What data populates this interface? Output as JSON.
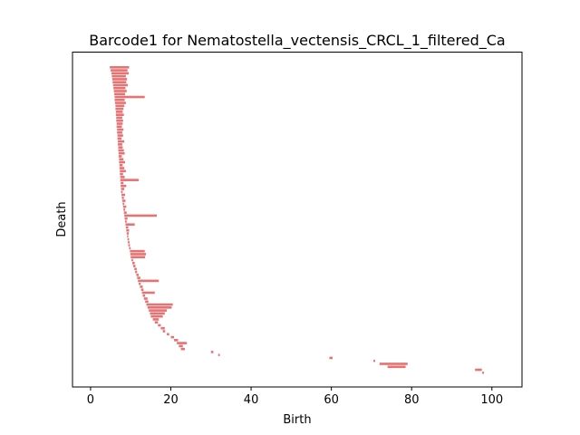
{
  "chart_data": {
    "type": "barcode",
    "title": "Barcode1 for Nematostella_vectensis_CRCL_1_filtered_Ca",
    "xlabel": "Birth",
    "ylabel": "Death",
    "xlim": [
      -4.5,
      107.5
    ],
    "x_ticks": [
      0,
      20,
      40,
      60,
      80,
      100
    ],
    "y_ticks_shown": false,
    "bar_color": "#e57373",
    "bars": [
      [
        4.8,
        9.6
      ],
      [
        5.0,
        9.2
      ],
      [
        5.2,
        9.5
      ],
      [
        5.3,
        8.8
      ],
      [
        5.4,
        9.1
      ],
      [
        5.5,
        8.9
      ],
      [
        5.6,
        9.3
      ],
      [
        5.7,
        8.7
      ],
      [
        5.8,
        9.0
      ],
      [
        5.9,
        8.6
      ],
      [
        6.0,
        13.5
      ],
      [
        6.0,
        8.5
      ],
      [
        6.1,
        8.8
      ],
      [
        6.2,
        8.4
      ],
      [
        6.2,
        8.2
      ],
      [
        6.3,
        8.0
      ],
      [
        6.3,
        8.3
      ],
      [
        6.4,
        7.9
      ],
      [
        6.4,
        8.1
      ],
      [
        6.5,
        8.0
      ],
      [
        6.5,
        7.8
      ],
      [
        6.6,
        8.2
      ],
      [
        6.6,
        7.9
      ],
      [
        6.7,
        8.1
      ],
      [
        6.7,
        7.7
      ],
      [
        6.8,
        8.4
      ],
      [
        6.8,
        7.9
      ],
      [
        6.9,
        8.0
      ],
      [
        6.9,
        8.3
      ],
      [
        7.0,
        8.5
      ],
      [
        7.0,
        7.8
      ],
      [
        7.1,
        8.2
      ],
      [
        7.1,
        8.6
      ],
      [
        7.2,
        8.0
      ],
      [
        7.2,
        8.4
      ],
      [
        7.3,
        8.8
      ],
      [
        7.3,
        8.1
      ],
      [
        7.4,
        8.5
      ],
      [
        7.4,
        12.0
      ],
      [
        7.5,
        8.2
      ],
      [
        7.5,
        8.9
      ],
      [
        7.6,
        8.4
      ],
      [
        7.6,
        8.0
      ],
      [
        7.7,
        8.6
      ],
      [
        7.8,
        8.3
      ],
      [
        7.9,
        8.7
      ],
      [
        8.0,
        8.4
      ],
      [
        8.1,
        8.9
      ],
      [
        8.2,
        8.6
      ],
      [
        8.3,
        9.0
      ],
      [
        8.4,
        16.5
      ],
      [
        8.5,
        9.2
      ],
      [
        8.6,
        9.0
      ],
      [
        8.7,
        11.0
      ],
      [
        8.8,
        9.4
      ],
      [
        8.9,
        9.6
      ],
      [
        9.0,
        9.5
      ],
      [
        9.1,
        9.4
      ],
      [
        9.2,
        9.6
      ],
      [
        9.3,
        9.7
      ],
      [
        9.4,
        9.8
      ],
      [
        9.6,
        10.0
      ],
      [
        9.8,
        13.5
      ],
      [
        9.9,
        13.8
      ],
      [
        10.0,
        13.6
      ],
      [
        10.2,
        10.6
      ],
      [
        10.4,
        11.0
      ],
      [
        10.6,
        11.2
      ],
      [
        10.9,
        11.5
      ],
      [
        11.1,
        11.6
      ],
      [
        11.4,
        12.0
      ],
      [
        11.6,
        12.4
      ],
      [
        11.8,
        17.0
      ],
      [
        12.0,
        12.5
      ],
      [
        12.3,
        13.0
      ],
      [
        12.6,
        13.2
      ],
      [
        12.8,
        16.0
      ],
      [
        13.0,
        13.6
      ],
      [
        13.3,
        14.2
      ],
      [
        13.6,
        14.4
      ],
      [
        13.9,
        20.5
      ],
      [
        14.2,
        20.2
      ],
      [
        14.5,
        19.0
      ],
      [
        14.8,
        18.5
      ],
      [
        15.0,
        18.0
      ],
      [
        15.5,
        17.0
      ],
      [
        16.0,
        16.8
      ],
      [
        16.8,
        17.5
      ],
      [
        17.5,
        18.5
      ],
      [
        18.0,
        18.6
      ],
      [
        19.0,
        19.6
      ],
      [
        20.0,
        20.8
      ],
      [
        20.8,
        21.8
      ],
      [
        21.5,
        24.0
      ],
      [
        22.0,
        23.0
      ],
      [
        22.5,
        23.5
      ],
      [
        30.0,
        30.6
      ],
      [
        31.8,
        32.2
      ],
      [
        59.5,
        60.3
      ],
      [
        70.5,
        70.9
      ],
      [
        72.0,
        79.0
      ],
      [
        74.0,
        78.5
      ],
      [
        95.8,
        97.5
      ],
      [
        97.6,
        98.0
      ]
    ]
  }
}
